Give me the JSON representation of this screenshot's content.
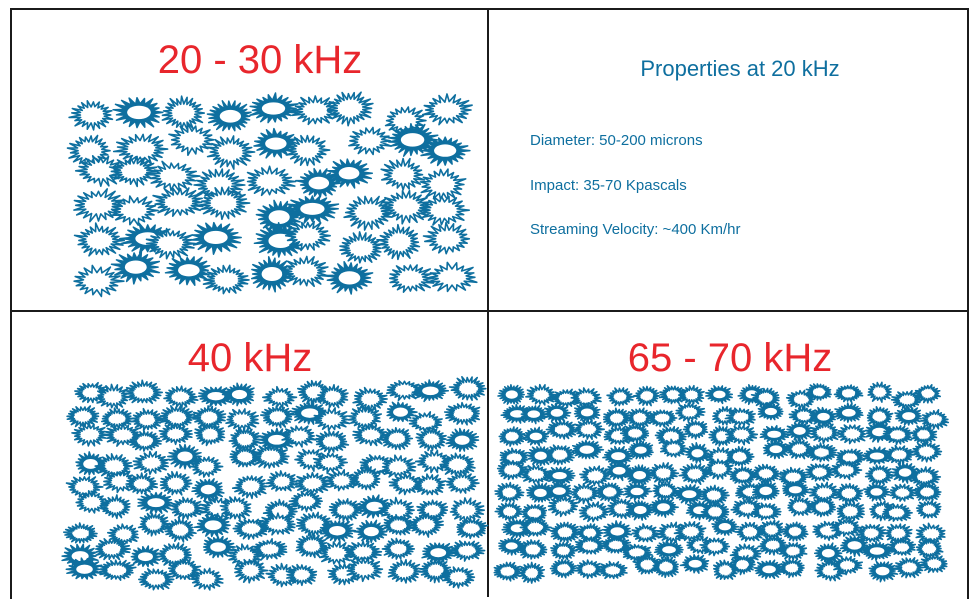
{
  "colors": {
    "title": "#e8262c",
    "accent": "#0e6f9f",
    "border": "#1b1b1b"
  },
  "panels": {
    "top_left": {
      "title": "20 - 30 kHz"
    },
    "top_right": {
      "heading": "Properties at 20 kHz",
      "properties": [
        "Diameter: 50-200 microns",
        "Impact: 35-70 Kpascals",
        "Streaming Velocity: ~400 Km/hr"
      ]
    },
    "bottom_left": {
      "title": "40 kHz"
    },
    "bottom_right": {
      "title": "65 - 70 kHz"
    }
  },
  "icon": "cavitation-bubble-icon"
}
